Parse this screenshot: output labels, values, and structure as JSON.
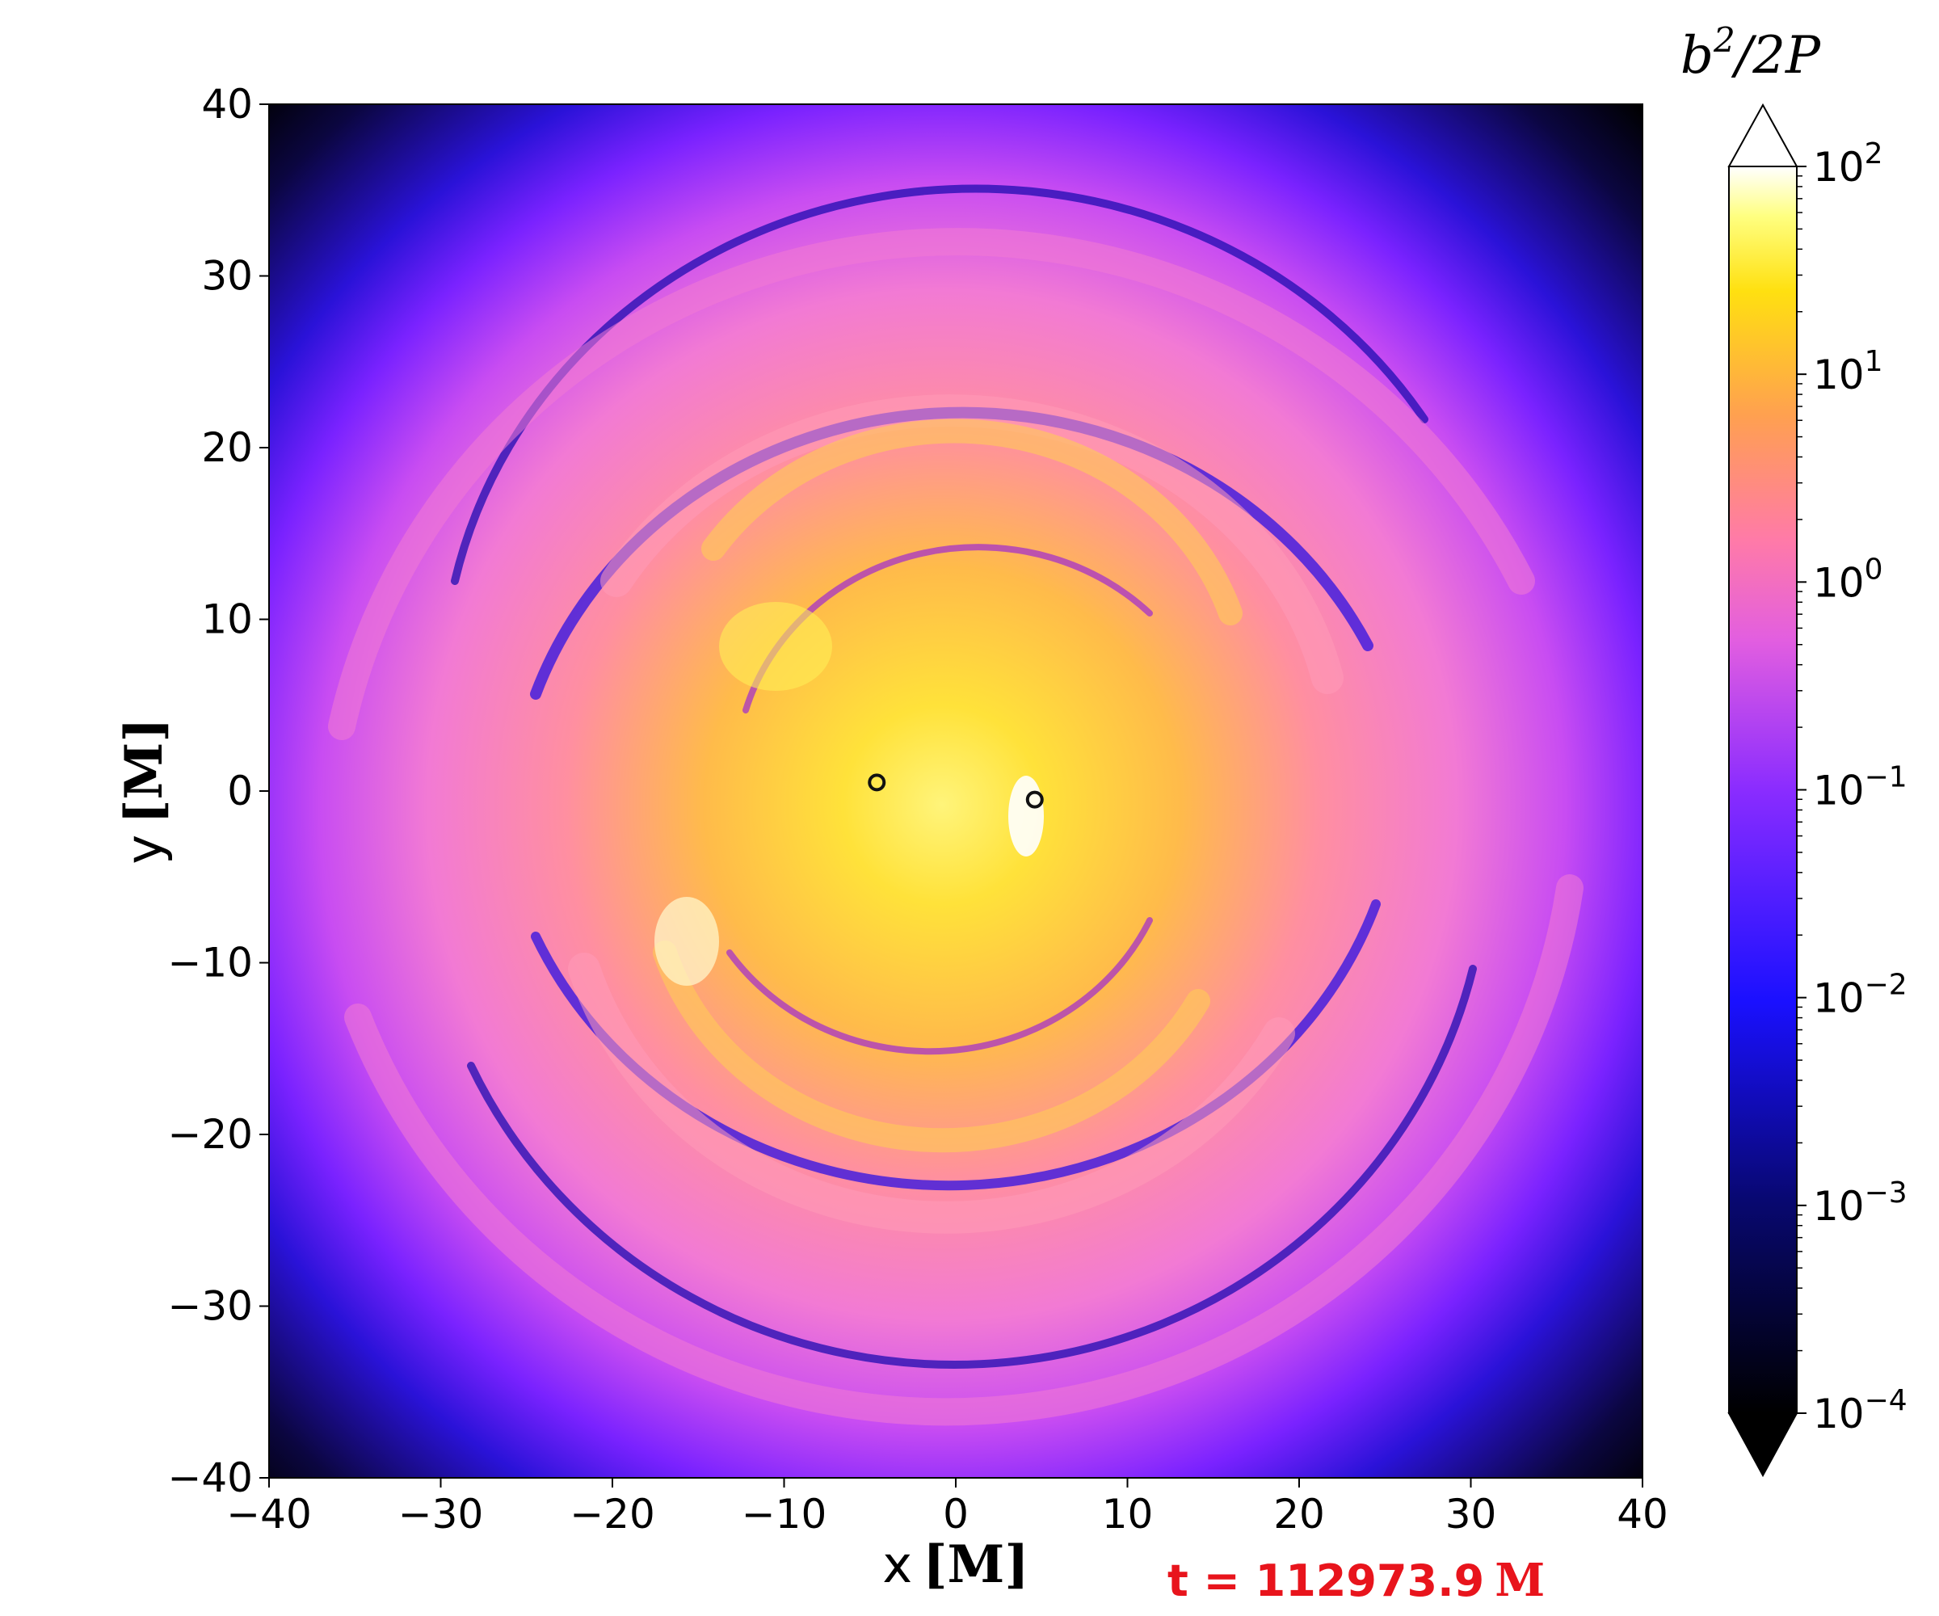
{
  "chart_data": {
    "type": "heatmap",
    "title": "",
    "xlabel": {
      "var": "x",
      "unit": "[M]"
    },
    "ylabel": {
      "var": "y",
      "unit": "[M]"
    },
    "xlim": [
      -40,
      40
    ],
    "ylim": [
      -40,
      40
    ],
    "xticks": [
      -40,
      -30,
      -20,
      -10,
      0,
      10,
      20,
      30,
      40
    ],
    "yticks": [
      -40,
      -30,
      -20,
      -10,
      0,
      10,
      20,
      30,
      40
    ],
    "xtick_labels": [
      "−40",
      "−30",
      "−20",
      "−10",
      "0",
      "10",
      "20",
      "30",
      "40"
    ],
    "ytick_labels": [
      "−40",
      "−30",
      "−20",
      "−10",
      "0",
      "10",
      "20",
      "30",
      "40"
    ],
    "grid": false,
    "colorbar": {
      "label": "b²/2P",
      "label_parts": {
        "base": "b",
        "sup": "2",
        "rest": "/2P"
      },
      "scale": "log",
      "range": [
        0.0001,
        100
      ],
      "extend": "both",
      "colormap": "gnuplot2",
      "ticks": [
        {
          "value": 100,
          "base": "10",
          "exp": "2"
        },
        {
          "value": 10,
          "base": "10",
          "exp": "1"
        },
        {
          "value": 1,
          "base": "10",
          "exp": "0"
        },
        {
          "value": 0.1,
          "base": "10",
          "exp": "−1"
        },
        {
          "value": 0.01,
          "base": "10",
          "exp": "−2"
        },
        {
          "value": 0.001,
          "base": "10",
          "exp": "−3"
        },
        {
          "value": 0.0001,
          "base": "10",
          "exp": "−4"
        }
      ]
    },
    "markers": [
      {
        "name": "black-hole-1",
        "x": -4.6,
        "y": 0.5
      },
      {
        "name": "black-hole-2",
        "x": 4.6,
        "y": -0.5
      }
    ],
    "annotation": {
      "text": "t = 112973.9",
      "unit": "M",
      "color": "#e8141c"
    }
  }
}
